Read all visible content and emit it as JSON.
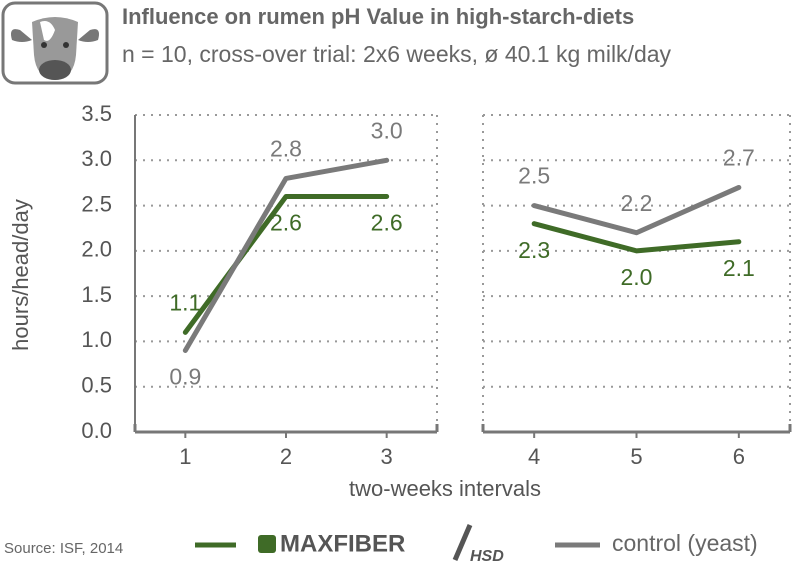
{
  "chart_data": {
    "type": "line",
    "title": "Influence on rumen pH Value in high-starch-diets",
    "subtitle": "n = 10, cross-over trial: 2x6 weeks, ø 40.1 kg milk/day",
    "y_label": "hours/head/day",
    "x_label": "two-weeks intervals",
    "source": "Source: ISF, 2014",
    "x": [
      1,
      2,
      3,
      4,
      5,
      6
    ],
    "xticks": [
      1,
      2,
      3,
      4,
      5,
      6
    ],
    "panels": [
      {
        "xlim": [
          0.5,
          3.5
        ]
      },
      {
        "xlim": [
          3.5,
          6.5
        ]
      }
    ],
    "ylim": [
      0,
      3.5
    ],
    "yticks": [
      {
        "value": 0,
        "label": "0.0"
      },
      0.5,
      {
        "value": 1,
        "label": "1.0"
      },
      1.5,
      {
        "value": 2,
        "label": "2.0"
      },
      2.5,
      {
        "value": 3,
        "label": "3.0"
      },
      3.5
    ],
    "grid": true,
    "series": [
      {
        "name": "MAXFIBER",
        "name_suffix": "HSD",
        "color": "#3f6b27",
        "values": [
          1.1,
          2.6,
          2.6,
          2.3,
          2.0,
          2.1
        ],
        "value_labels": [
          "1.1",
          "2.6",
          "2.6",
          "2.3",
          "2.0",
          "2.1"
        ]
      },
      {
        "name": "control (yeast)",
        "color": "#7a7a7a",
        "values": [
          0.9,
          2.8,
          3.0,
          2.5,
          2.2,
          2.7
        ],
        "value_labels": [
          "0.9",
          "2.8",
          "3.0",
          "2.5",
          "2.2",
          "2.7"
        ]
      }
    ]
  }
}
